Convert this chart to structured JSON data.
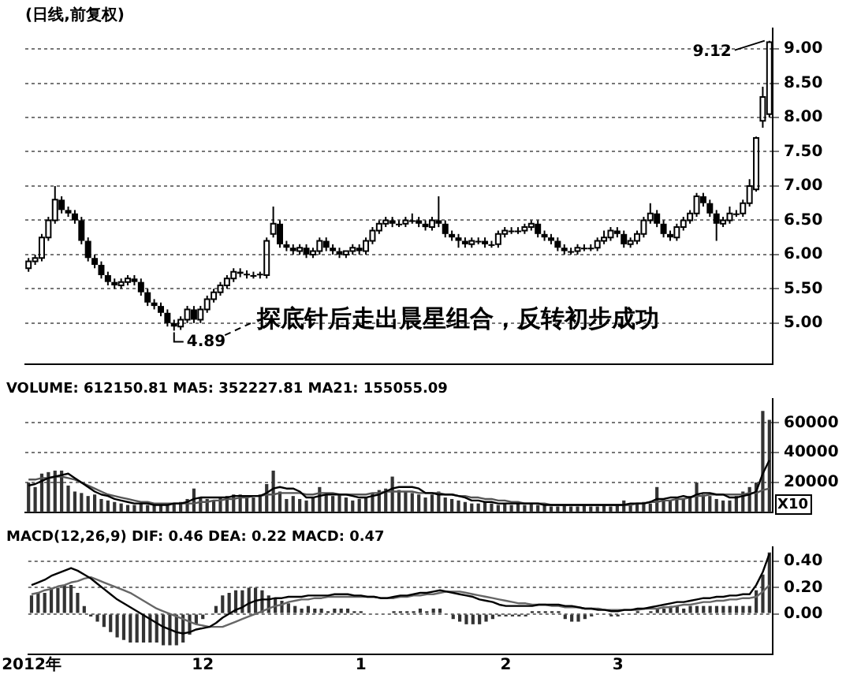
{
  "chart_data": [
    {
      "type": "candlestick",
      "title": "(日线,前复权)",
      "ohlc": [
        [
          5.8,
          5.95,
          5.75,
          5.9
        ],
        [
          5.9,
          6.0,
          5.85,
          5.95
        ],
        [
          5.95,
          6.3,
          5.9,
          6.25
        ],
        [
          6.25,
          6.55,
          6.2,
          6.5
        ],
        [
          6.5,
          7.0,
          6.45,
          6.8
        ],
        [
          6.8,
          6.85,
          6.6,
          6.65
        ],
        [
          6.65,
          6.7,
          6.55,
          6.6
        ],
        [
          6.6,
          6.65,
          6.45,
          6.5
        ],
        [
          6.5,
          6.55,
          6.15,
          6.2
        ],
        [
          6.2,
          6.25,
          5.9,
          5.95
        ],
        [
          5.95,
          6.0,
          5.8,
          5.85
        ],
        [
          5.85,
          5.9,
          5.65,
          5.7
        ],
        [
          5.7,
          5.75,
          5.55,
          5.6
        ],
        [
          5.6,
          5.65,
          5.5,
          5.55
        ],
        [
          5.55,
          5.65,
          5.5,
          5.6
        ],
        [
          5.6,
          5.7,
          5.55,
          5.65
        ],
        [
          5.65,
          5.7,
          5.55,
          5.6
        ],
        [
          5.6,
          5.65,
          5.4,
          5.45
        ],
        [
          5.45,
          5.5,
          5.25,
          5.3
        ],
        [
          5.3,
          5.35,
          5.2,
          5.25
        ],
        [
          5.25,
          5.3,
          5.1,
          5.15
        ],
        [
          5.15,
          5.2,
          4.95,
          5.0
        ],
        [
          5.0,
          5.05,
          4.89,
          4.95
        ],
        [
          4.95,
          5.1,
          4.9,
          5.05
        ],
        [
          5.05,
          5.25,
          5.0,
          5.2
        ],
        [
          5.2,
          5.25,
          5.0,
          5.05
        ],
        [
          5.05,
          5.25,
          5.0,
          5.2
        ],
        [
          5.2,
          5.4,
          5.15,
          5.35
        ],
        [
          5.35,
          5.5,
          5.3,
          5.45
        ],
        [
          5.45,
          5.6,
          5.4,
          5.55
        ],
        [
          5.55,
          5.7,
          5.5,
          5.65
        ],
        [
          5.65,
          5.8,
          5.6,
          5.75
        ],
        [
          5.75,
          5.8,
          5.67,
          5.72
        ],
        [
          5.72,
          5.77,
          5.65,
          5.7
        ],
        [
          5.7,
          5.75,
          5.65,
          5.7
        ],
        [
          5.72,
          5.75,
          5.65,
          5.7
        ],
        [
          5.7,
          6.25,
          5.65,
          6.2
        ],
        [
          6.3,
          6.7,
          6.25,
          6.45
        ],
        [
          6.45,
          6.5,
          6.1,
          6.15
        ],
        [
          6.15,
          6.2,
          6.05,
          6.1
        ],
        [
          6.1,
          6.15,
          6.0,
          6.05
        ],
        [
          6.05,
          6.15,
          6.0,
          6.1
        ],
        [
          6.1,
          6.15,
          5.95,
          6.0
        ],
        [
          6.0,
          6.1,
          5.95,
          6.05
        ],
        [
          6.05,
          6.25,
          6.0,
          6.2
        ],
        [
          6.2,
          6.25,
          6.05,
          6.1
        ],
        [
          6.1,
          6.15,
          6.0,
          6.05
        ],
        [
          6.05,
          6.1,
          5.95,
          6.0
        ],
        [
          6.0,
          6.05,
          5.95,
          6.05
        ],
        [
          6.05,
          6.15,
          6.0,
          6.1
        ],
        [
          6.1,
          6.15,
          6.0,
          6.05
        ],
        [
          6.05,
          6.25,
          6.0,
          6.2
        ],
        [
          6.2,
          6.4,
          6.15,
          6.35
        ],
        [
          6.35,
          6.5,
          6.3,
          6.45
        ],
        [
          6.45,
          6.55,
          6.4,
          6.5
        ],
        [
          6.5,
          6.55,
          6.4,
          6.45
        ],
        [
          6.45,
          6.5,
          6.4,
          6.45
        ],
        [
          6.45,
          6.55,
          6.4,
          6.5
        ],
        [
          6.5,
          6.6,
          6.45,
          6.5
        ],
        [
          6.5,
          6.55,
          6.4,
          6.45
        ],
        [
          6.45,
          6.5,
          6.35,
          6.4
        ],
        [
          6.4,
          6.55,
          6.35,
          6.5
        ],
        [
          6.5,
          6.85,
          6.4,
          6.45
        ],
        [
          6.45,
          6.5,
          6.25,
          6.3
        ],
        [
          6.3,
          6.35,
          6.2,
          6.25
        ],
        [
          6.25,
          6.3,
          6.1,
          6.2
        ],
        [
          6.2,
          6.25,
          6.1,
          6.15
        ],
        [
          6.15,
          6.25,
          6.1,
          6.2
        ],
        [
          6.2,
          6.25,
          6.15,
          6.2
        ],
        [
          6.2,
          6.25,
          6.1,
          6.15
        ],
        [
          6.15,
          6.2,
          6.1,
          6.15
        ],
        [
          6.15,
          6.35,
          6.1,
          6.3
        ],
        [
          6.3,
          6.4,
          6.25,
          6.35
        ],
        [
          6.35,
          6.4,
          6.3,
          6.35
        ],
        [
          6.35,
          6.4,
          6.3,
          6.35
        ],
        [
          6.35,
          6.45,
          6.3,
          6.4
        ],
        [
          6.4,
          6.5,
          6.35,
          6.45
        ],
        [
          6.45,
          6.5,
          6.25,
          6.3
        ],
        [
          6.3,
          6.35,
          6.2,
          6.25
        ],
        [
          6.25,
          6.3,
          6.15,
          6.2
        ],
        [
          6.2,
          6.25,
          6.05,
          6.1
        ],
        [
          6.1,
          6.15,
          6.0,
          6.05
        ],
        [
          6.05,
          6.1,
          6.0,
          6.05
        ],
        [
          6.05,
          6.15,
          6.0,
          6.1
        ],
        [
          6.1,
          6.15,
          6.05,
          6.1
        ],
        [
          6.1,
          6.15,
          6.05,
          6.1
        ],
        [
          6.1,
          6.25,
          6.05,
          6.2
        ],
        [
          6.2,
          6.35,
          6.15,
          6.25
        ],
        [
          6.25,
          6.4,
          6.2,
          6.35
        ],
        [
          6.35,
          6.4,
          6.25,
          6.3
        ],
        [
          6.3,
          6.35,
          6.1,
          6.15
        ],
        [
          6.15,
          6.25,
          6.1,
          6.2
        ],
        [
          6.2,
          6.35,
          6.15,
          6.3
        ],
        [
          6.3,
          6.55,
          6.25,
          6.5
        ],
        [
          6.5,
          6.75,
          6.45,
          6.6
        ],
        [
          6.6,
          6.65,
          6.4,
          6.45
        ],
        [
          6.45,
          6.5,
          6.25,
          6.3
        ],
        [
          6.3,
          6.35,
          6.2,
          6.25
        ],
        [
          6.25,
          6.45,
          6.2,
          6.4
        ],
        [
          6.4,
          6.55,
          6.35,
          6.5
        ],
        [
          6.5,
          6.65,
          6.45,
          6.6
        ],
        [
          6.6,
          6.9,
          6.55,
          6.85
        ],
        [
          6.85,
          6.9,
          6.7,
          6.75
        ],
        [
          6.75,
          6.8,
          6.55,
          6.6
        ],
        [
          6.6,
          6.65,
          6.2,
          6.45
        ],
        [
          6.45,
          6.55,
          6.4,
          6.5
        ],
        [
          6.5,
          6.7,
          6.45,
          6.6
        ],
        [
          6.6,
          6.65,
          6.55,
          6.6
        ],
        [
          6.6,
          6.8,
          6.55,
          6.75
        ],
        [
          6.75,
          7.1,
          6.7,
          7.0
        ],
        [
          6.95,
          7.72,
          6.92,
          7.7
        ],
        [
          7.95,
          8.45,
          7.85,
          8.3
        ],
        [
          8.05,
          9.12,
          8.0,
          9.1
        ]
      ],
      "color": "#000000",
      "ylim": [
        4.4,
        9.3
      ],
      "yticks": [
        {
          "value": 5,
          "label": "5.00"
        },
        {
          "value": 5.5,
          "label": "5.50"
        },
        {
          "value": 6,
          "label": "6.00"
        },
        {
          "value": 6.5,
          "label": "6.50"
        },
        {
          "value": 7,
          "label": "7.00"
        },
        {
          "value": 7.5,
          "label": "7.50"
        },
        {
          "value": 8,
          "label": "8.00"
        },
        {
          "value": 8.5,
          "label": "8.50"
        },
        {
          "value": 9,
          "label": "9.00"
        }
      ],
      "grid": "y",
      "tick_labels": "y",
      "annotations": [
        "9.12",
        "4.89",
        "探底针后走出晨星组合，反转初步成功"
      ]
    },
    {
      "type": "bar",
      "series": [
        {
          "type": "bar",
          "color": "#333333",
          "values": [
            20000,
            17000,
            26000,
            27000,
            28000,
            28000,
            18000,
            14000,
            13000,
            11000,
            12000,
            9000,
            8000,
            7000,
            6000,
            5000,
            5000,
            6000,
            5000,
            5000,
            5000,
            5000,
            6000,
            7000,
            9000,
            16000,
            10000,
            9000,
            8000,
            10000,
            11000,
            12000,
            12000,
            11000,
            10000,
            12000,
            19000,
            28000,
            14000,
            9000,
            11000,
            9000,
            8000,
            10000,
            17000,
            12000,
            11000,
            12000,
            10000,
            8000,
            9000,
            10000,
            13000,
            15000,
            16000,
            24000,
            15000,
            14000,
            13000,
            12000,
            10000,
            12000,
            14000,
            10000,
            9000,
            8000,
            7000,
            6000,
            6000,
            7000,
            6000,
            5000,
            6000,
            5000,
            6000,
            5000,
            6000,
            5000,
            5000,
            4000,
            4000,
            5000,
            4000,
            4000,
            5000,
            4000,
            4000,
            5000,
            4000,
            5000,
            8000,
            5000,
            6000,
            7000,
            6000,
            17000,
            9000,
            8000,
            10000,
            9000,
            11000,
            20000,
            12000,
            11000,
            9000,
            8000,
            8000,
            11000,
            14000,
            17000,
            20000,
            68000,
            62000
          ]
        },
        {
          "type": "line",
          "color": "#000000",
          "values": [
            18000,
            19000,
            21000,
            23000,
            24000,
            25000,
            26000,
            23000,
            20000,
            17000,
            14000,
            12000,
            11000,
            9000,
            8000,
            7000,
            6000,
            6000,
            6000,
            5000,
            5000,
            5000,
            6000,
            6000,
            7000,
            9000,
            10000,
            10000,
            10000,
            10000,
            10000,
            11000,
            11000,
            11000,
            11000,
            11000,
            13000,
            16000,
            17000,
            16000,
            16000,
            14000,
            10000,
            10000,
            11000,
            12000,
            12000,
            12000,
            12000,
            11000,
            10000,
            10000,
            11000,
            12000,
            14000,
            16000,
            17000,
            17000,
            17000,
            16000,
            13000,
            13000,
            12000,
            12000,
            12000,
            11000,
            10000,
            8000,
            8000,
            7000,
            7000,
            6000,
            6000,
            6000,
            6000,
            6000,
            6000,
            6000,
            5000,
            5000,
            5000,
            5000,
            5000,
            5000,
            5000,
            5000,
            5000,
            5000,
            5000,
            5000,
            5000,
            6000,
            6000,
            6000,
            7000,
            9000,
            9000,
            10000,
            10000,
            11000,
            10000,
            12000,
            13000,
            13000,
            12000,
            12000,
            10000,
            10000,
            11000,
            12000,
            14000,
            26000,
            35000
          ]
        },
        {
          "type": "line",
          "color": "#555555",
          "values": [
            22000,
            22000,
            23000,
            23000,
            24000,
            24000,
            23000,
            22000,
            20000,
            18000,
            16000,
            14000,
            12000,
            11000,
            10000,
            9000,
            8000,
            7000,
            7000,
            6000,
            6000,
            6000,
            6000,
            6000,
            6000,
            6000,
            7000,
            7000,
            8000,
            8000,
            9000,
            9000,
            10000,
            10000,
            11000,
            11000,
            12000,
            12000,
            13000,
            13000,
            13000,
            13000,
            12000,
            12000,
            13000,
            13000,
            13000,
            12000,
            12000,
            12000,
            12000,
            12000,
            13000,
            13000,
            14000,
            14000,
            14000,
            14000,
            14000,
            13000,
            13000,
            13000,
            13000,
            12000,
            12000,
            11000,
            11000,
            10000,
            10000,
            9000,
            9000,
            8000,
            8000,
            7000,
            7000,
            6000,
            6000,
            6000,
            6000,
            5000,
            5000,
            5000,
            5000,
            5000,
            5000,
            5000,
            5000,
            5000,
            5000,
            5000,
            5000,
            5000,
            6000,
            6000,
            7000,
            7000,
            8000,
            8000,
            9000,
            9000,
            10000,
            11000,
            11000,
            12000,
            12000,
            12000,
            12000,
            12000,
            12000,
            13000,
            13000,
            15000,
            16000
          ]
        }
      ],
      "ylim": [
        0,
        76000
      ],
      "yticks": [
        20000,
        40000,
        60000
      ],
      "grid": "y",
      "tick_labels": "y",
      "annotations": [
        "VOLUME: 612150.81 MA5: 352227.81 MA21: 155055.09",
        "X10"
      ]
    },
    {
      "type": "bar",
      "categories": [
        "2012年",
        null,
        null,
        null,
        null,
        null,
        null,
        null,
        null,
        null,
        null,
        null,
        null,
        null,
        null,
        null,
        null,
        null,
        null,
        null,
        null,
        null,
        null,
        null,
        null,
        null,
        "12",
        null,
        null,
        null,
        null,
        null,
        null,
        null,
        null,
        null,
        null,
        null,
        null,
        null,
        null,
        null,
        null,
        null,
        null,
        null,
        null,
        null,
        null,
        null,
        "1",
        null,
        null,
        null,
        null,
        null,
        null,
        null,
        null,
        null,
        null,
        null,
        null,
        null,
        null,
        null,
        null,
        null,
        null,
        null,
        null,
        null,
        "2",
        null,
        null,
        null,
        null,
        null,
        null,
        null,
        null,
        null,
        null,
        null,
        null,
        null,
        null,
        null,
        null,
        "3",
        null,
        null,
        null,
        null,
        null,
        null,
        null,
        null,
        null,
        null,
        null,
        null,
        null,
        null,
        null,
        null,
        null,
        null,
        null,
        null,
        null,
        null,
        null
      ],
      "series": [
        {
          "type": "bar",
          "color": "#333333",
          "values": [
            0.14,
            0.16,
            0.16,
            0.2,
            0.2,
            0.22,
            0.22,
            0.16,
            0.06,
            -0.02,
            -0.06,
            -0.1,
            -0.14,
            -0.18,
            -0.2,
            -0.22,
            -0.22,
            -0.22,
            -0.22,
            -0.22,
            -0.24,
            -0.24,
            -0.24,
            -0.22,
            -0.16,
            -0.08,
            -0.04,
            0.0,
            0.06,
            0.14,
            0.16,
            0.18,
            0.18,
            0.2,
            0.2,
            0.18,
            0.14,
            0.12,
            0.1,
            0.08,
            0.06,
            0.04,
            0.06,
            0.04,
            0.04,
            0.02,
            0.04,
            0.04,
            0.04,
            0.02,
            0.02,
            0.0,
            0.0,
            0.0,
            0.0,
            0.02,
            0.02,
            0.02,
            0.02,
            0.04,
            0.02,
            0.04,
            0.04,
            0.0,
            -0.04,
            -0.06,
            -0.08,
            -0.08,
            -0.08,
            -0.06,
            -0.04,
            -0.02,
            -0.02,
            -0.02,
            -0.02,
            -0.02,
            0.02,
            0.02,
            0.02,
            0.02,
            0.02,
            -0.04,
            -0.06,
            -0.06,
            -0.04,
            -0.02,
            0.0,
            0.0,
            -0.02,
            -0.02,
            0.0,
            0.0,
            0.02,
            0.0,
            0.02,
            0.04,
            0.04,
            0.06,
            0.06,
            0.04,
            0.06,
            0.06,
            0.06,
            0.06,
            0.06,
            0.06,
            0.06,
            0.06,
            0.06,
            0.06,
            0.18,
            0.3,
            0.47
          ]
        },
        {
          "type": "line",
          "color": "#000000",
          "values": [
            0.22,
            0.24,
            0.26,
            0.29,
            0.31,
            0.33,
            0.35,
            0.33,
            0.3,
            0.27,
            0.23,
            0.19,
            0.15,
            0.11,
            0.08,
            0.05,
            0.02,
            -0.01,
            -0.04,
            -0.07,
            -0.1,
            -0.12,
            -0.14,
            -0.15,
            -0.14,
            -0.12,
            -0.11,
            -0.1,
            -0.07,
            -0.03,
            0.0,
            0.03,
            0.05,
            0.08,
            0.1,
            0.11,
            0.11,
            0.12,
            0.12,
            0.13,
            0.13,
            0.13,
            0.14,
            0.14,
            0.14,
            0.14,
            0.15,
            0.15,
            0.15,
            0.14,
            0.14,
            0.13,
            0.13,
            0.12,
            0.12,
            0.13,
            0.14,
            0.14,
            0.15,
            0.16,
            0.16,
            0.17,
            0.18,
            0.17,
            0.16,
            0.15,
            0.14,
            0.13,
            0.11,
            0.1,
            0.09,
            0.07,
            0.06,
            0.06,
            0.06,
            0.06,
            0.06,
            0.07,
            0.07,
            0.07,
            0.07,
            0.06,
            0.06,
            0.05,
            0.04,
            0.04,
            0.03,
            0.03,
            0.02,
            0.02,
            0.03,
            0.03,
            0.04,
            0.04,
            0.05,
            0.06,
            0.07,
            0.08,
            0.09,
            0.09,
            0.1,
            0.11,
            0.12,
            0.12,
            0.13,
            0.13,
            0.14,
            0.14,
            0.15,
            0.15,
            0.22,
            0.32,
            0.46
          ]
        },
        {
          "type": "line",
          "color": "#666666",
          "values": [
            0.15,
            0.16,
            0.18,
            0.19,
            0.21,
            0.22,
            0.24,
            0.25,
            0.27,
            0.28,
            0.26,
            0.24,
            0.22,
            0.2,
            0.18,
            0.16,
            0.13,
            0.1,
            0.07,
            0.04,
            0.02,
            0.0,
            -0.02,
            -0.04,
            -0.06,
            -0.08,
            -0.09,
            -0.1,
            -0.1,
            -0.1,
            -0.08,
            -0.06,
            -0.04,
            -0.02,
            0.0,
            0.02,
            0.04,
            0.06,
            0.07,
            0.09,
            0.1,
            0.11,
            0.11,
            0.12,
            0.12,
            0.13,
            0.13,
            0.13,
            0.13,
            0.13,
            0.13,
            0.13,
            0.13,
            0.12,
            0.12,
            0.12,
            0.13,
            0.13,
            0.14,
            0.14,
            0.15,
            0.15,
            0.16,
            0.17,
            0.17,
            0.17,
            0.16,
            0.15,
            0.14,
            0.13,
            0.12,
            0.11,
            0.1,
            0.09,
            0.08,
            0.08,
            0.07,
            0.07,
            0.07,
            0.06,
            0.06,
            0.05,
            0.05,
            0.05,
            0.04,
            0.04,
            0.04,
            0.03,
            0.03,
            0.03,
            0.03,
            0.03,
            0.03,
            0.04,
            0.04,
            0.04,
            0.05,
            0.05,
            0.06,
            0.07,
            0.07,
            0.08,
            0.09,
            0.09,
            0.1,
            0.1,
            0.11,
            0.11,
            0.12,
            0.12,
            0.13,
            0.17,
            0.22
          ]
        }
      ],
      "ylim": [
        -0.31,
        0.51
      ],
      "yticks": [
        {
          "value": 0,
          "label": "0.00"
        },
        {
          "value": 0.2,
          "label": "0.20"
        },
        {
          "value": 0.4,
          "label": "0.40"
        }
      ],
      "grid": "y",
      "annotations": [
        "MACD(12,26,9) DIF: 0.46 DEA: 0.22 MACD: 0.47"
      ]
    }
  ]
}
